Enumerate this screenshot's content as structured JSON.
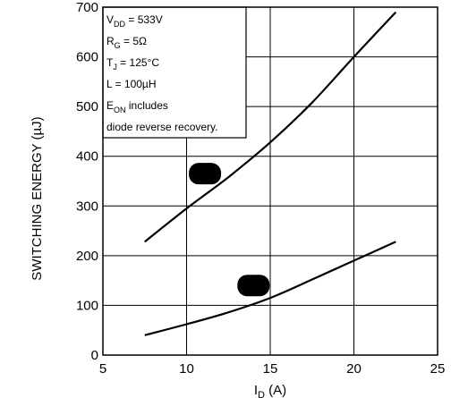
{
  "chart_data": {
    "type": "line",
    "xlabel": {
      "main": "I",
      "sub": "D",
      "unit": " (A)"
    },
    "ylabel": "SWITCHING ENERGY (µJ)",
    "xlim": [
      5,
      25
    ],
    "ylim": [
      0,
      700
    ],
    "x_ticks": [
      "5",
      "10",
      "15",
      "20",
      "25"
    ],
    "y_ticks": [
      "0",
      "100",
      "200",
      "300",
      "400",
      "500",
      "600",
      "700"
    ],
    "grid": true,
    "series": [
      {
        "values_x": [
          7.5,
          10,
          12.5,
          15,
          17.5,
          20,
          22.5
        ],
        "values_y": [
          228,
          295,
          358,
          428,
          508,
          600,
          690
        ],
        "marker": "blob"
      },
      {
        "values_x": [
          7.5,
          10,
          12.5,
          15,
          17.5,
          20,
          22.5
        ],
        "values_y": [
          40,
          62,
          86,
          115,
          152,
          190,
          228
        ],
        "marker": "blob"
      }
    ],
    "markers": [
      {
        "series": 0,
        "x": 11.1,
        "y": 365
      },
      {
        "series": 1,
        "x": 14.0,
        "y": 140
      }
    ],
    "legend_box": {
      "position": "top-left",
      "lines": [
        {
          "main": "V",
          "sub": "DD",
          "rest": " = 533V"
        },
        {
          "main": "R",
          "sub": "G",
          "rest": " = 5Ω"
        },
        {
          "main": "T",
          "sub": "J",
          "rest": " = 125°C"
        },
        {
          "main": "L = 100µH",
          "sub": "",
          "rest": ""
        },
        {
          "main": "E",
          "sub": "ON",
          "rest": " includes"
        },
        {
          "main": "diode reverse recovery.",
          "sub": "",
          "rest": ""
        }
      ]
    }
  }
}
